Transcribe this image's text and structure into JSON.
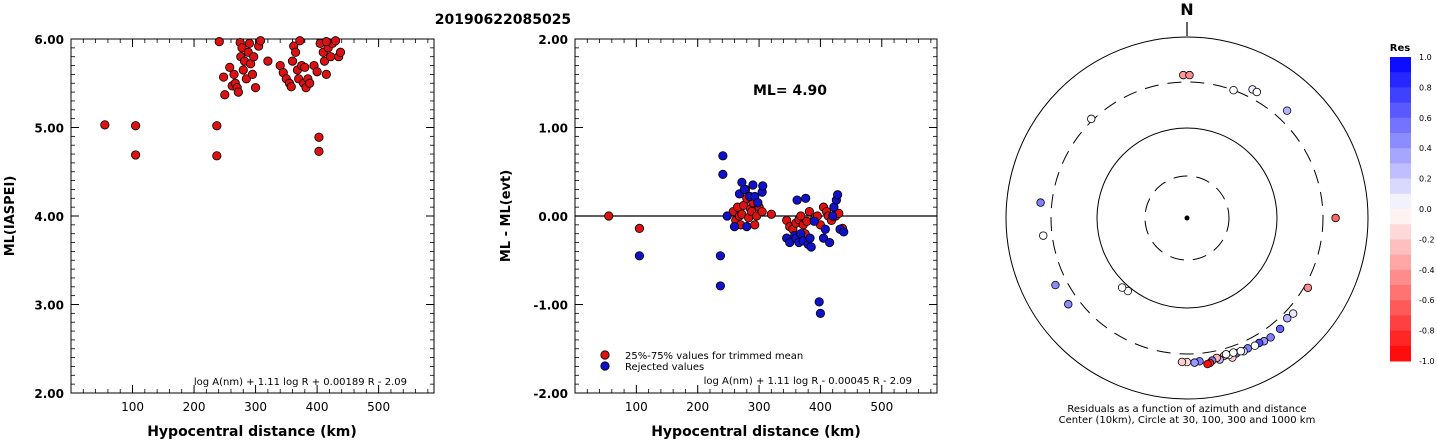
{
  "chart_data": [
    {
      "type": "scatter",
      "title": "20190622085025",
      "xlabel": "Hypocentral distance (km)",
      "ylabel": "ML(IASPEI)",
      "xlim": [
        0,
        590
      ],
      "ylim": [
        2.0,
        6.0
      ],
      "x_ticks": [
        "100",
        "200",
        "300",
        "400",
        "500"
      ],
      "x_tick_values": [
        100,
        200,
        300,
        400,
        500
      ],
      "y_ticks": [
        "2.00",
        "3.00",
        "4.00",
        "5.00",
        "6.00"
      ],
      "y_tick_values": [
        2,
        3,
        4,
        5,
        6
      ],
      "formula": "log A(nm) + 1.11 log R + 0.00189 R - 2.09",
      "point_color": "#dd1111",
      "series": [
        {
          "points": [
            [
              55,
              5.03
            ],
            [
              105,
              5.02
            ],
            [
              105,
              4.69
            ],
            [
              237,
              5.02
            ],
            [
              237,
              4.68
            ],
            [
              241,
              5.97
            ],
            [
              248,
              5.57
            ],
            [
              250,
              5.37
            ],
            [
              258,
              5.68
            ],
            [
              262,
              5.47
            ],
            [
              265,
              5.6
            ],
            [
              267,
              5.5
            ],
            [
              270,
              5.45
            ],
            [
              272,
              5.4
            ],
            [
              275,
              5.96
            ],
            [
              276,
              5.8
            ],
            [
              278,
              5.9
            ],
            [
              280,
              5.65
            ],
            [
              282,
              5.75
            ],
            [
              285,
              5.55
            ],
            [
              288,
              5.85
            ],
            [
              290,
              5.95
            ],
            [
              292,
              5.72
            ],
            [
              295,
              5.6
            ],
            [
              297,
              5.8
            ],
            [
              300,
              5.45
            ],
            [
              305,
              5.92
            ],
            [
              308,
              5.98
            ],
            [
              320,
              5.75
            ],
            [
              340,
              5.7
            ],
            [
              345,
              5.62
            ],
            [
              350,
              5.55
            ],
            [
              355,
              5.5
            ],
            [
              358,
              5.46
            ],
            [
              360,
              5.75
            ],
            [
              362,
              5.92
            ],
            [
              365,
              5.85
            ],
            [
              368,
              5.65
            ],
            [
              370,
              5.55
            ],
            [
              372,
              5.98
            ],
            [
              375,
              5.7
            ],
            [
              378,
              5.5
            ],
            [
              380,
              5.68
            ],
            [
              382,
              5.45
            ],
            [
              385,
              5.55
            ],
            [
              388,
              5.5
            ],
            [
              395,
              5.7
            ],
            [
              400,
              5.63
            ],
            [
              403,
              4.89
            ],
            [
              403,
              4.73
            ],
            [
              405,
              5.95
            ],
            [
              410,
              5.85
            ],
            [
              412,
              5.75
            ],
            [
              415,
              5.6
            ],
            [
              418,
              5.9
            ],
            [
              422,
              5.8
            ],
            [
              425,
              5.95
            ],
            [
              430,
              5.98
            ],
            [
              435,
              5.8
            ],
            [
              438,
              5.85
            ],
            [
              415,
              5.97
            ]
          ]
        }
      ]
    },
    {
      "type": "scatter",
      "xlabel": "Hypocentral distance (km)",
      "ylabel": "ML - ML(evt)",
      "xlim": [
        0,
        590
      ],
      "ylim": [
        -2.0,
        2.0
      ],
      "x_ticks": [
        "100",
        "200",
        "300",
        "400",
        "500"
      ],
      "x_tick_values": [
        100,
        200,
        300,
        400,
        500
      ],
      "y_ticks": [
        "-2.00",
        "-1.00",
        "0.00",
        "1.00",
        "2.00"
      ],
      "y_tick_values": [
        -2,
        -1,
        0,
        1,
        2
      ],
      "annotation": "ML= 4.90",
      "formula": "log A(nm) + 1.11 log R - 0.00045 R - 2.09",
      "legend_position": "bottom-left",
      "series": [
        {
          "name": "25%-75% values for trimmed mean",
          "color": "#dd1111",
          "points": [
            [
              55,
              0.0
            ],
            [
              105,
              -0.14
            ],
            [
              258,
              0.05
            ],
            [
              262,
              -0.05
            ],
            [
              265,
              0.1
            ],
            [
              268,
              0.0
            ],
            [
              270,
              -0.1
            ],
            [
              272,
              0.02
            ],
            [
              275,
              0.12
            ],
            [
              278,
              0.3
            ],
            [
              280,
              0.2
            ],
            [
              283,
              -0.02
            ],
            [
              286,
              0.08
            ],
            [
              288,
              0.05
            ],
            [
              290,
              0.15
            ],
            [
              293,
              -0.1
            ],
            [
              296,
              0.0
            ],
            [
              300,
              0.1
            ],
            [
              305,
              0.05
            ],
            [
              320,
              0.02
            ],
            [
              345,
              -0.05
            ],
            [
              350,
              -0.12
            ],
            [
              355,
              -0.15
            ],
            [
              360,
              -0.08
            ],
            [
              365,
              -0.04
            ],
            [
              368,
              0.0
            ],
            [
              372,
              -0.1
            ],
            [
              375,
              -0.2
            ],
            [
              378,
              -0.06
            ],
            [
              382,
              0.05
            ],
            [
              390,
              -0.04
            ],
            [
              395,
              0.0
            ],
            [
              400,
              -0.1
            ],
            [
              405,
              0.1
            ],
            [
              410,
              0.05
            ],
            [
              413,
              0.0
            ],
            [
              418,
              -0.05
            ],
            [
              425,
              0.0
            ],
            [
              430,
              0.03
            ],
            [
              436,
              -0.14
            ]
          ]
        },
        {
          "name": "Rejected values",
          "color": "#1111cc",
          "points": [
            [
              105,
              -0.45
            ],
            [
              237,
              -0.45
            ],
            [
              237,
              -0.79
            ],
            [
              241,
              0.68
            ],
            [
              241,
              0.47
            ],
            [
              248,
              0.0
            ],
            [
              260,
              -0.12
            ],
            [
              268,
              0.25
            ],
            [
              272,
              0.38
            ],
            [
              276,
              0.3
            ],
            [
              280,
              -0.12
            ],
            [
              285,
              0.22
            ],
            [
              290,
              0.35
            ],
            [
              293,
              0.22
            ],
            [
              298,
              0.15
            ],
            [
              305,
              0.27
            ],
            [
              306,
              0.34
            ],
            [
              345,
              -0.25
            ],
            [
              350,
              -0.3
            ],
            [
              358,
              -0.22
            ],
            [
              360,
              -0.25
            ],
            [
              362,
              0.18
            ],
            [
              365,
              -0.3
            ],
            [
              368,
              -0.2
            ],
            [
              372,
              -0.28
            ],
            [
              376,
              0.2
            ],
            [
              380,
              -0.32
            ],
            [
              383,
              -0.25
            ],
            [
              385,
              -0.35
            ],
            [
              390,
              -0.06
            ],
            [
              398,
              -0.97
            ],
            [
              400,
              -1.1
            ],
            [
              405,
              -0.25
            ],
            [
              408,
              -0.15
            ],
            [
              415,
              -0.3
            ],
            [
              420,
              0.0
            ],
            [
              422,
              0.1
            ],
            [
              426,
              0.18
            ],
            [
              428,
              0.24
            ],
            [
              432,
              -0.15
            ],
            [
              438,
              -0.18
            ]
          ]
        }
      ]
    },
    {
      "type": "scatter",
      "north_label": "N",
      "caption_line1": "Residuals as a function of azimuth and distance",
      "caption_line2": "Center (10km), Circle at 30, 100, 300 and 1000 km",
      "colorbar_title": "Res",
      "colorbar_labels": [
        "1.0",
        "0.8",
        "0.6",
        "0.4",
        "0.2",
        "0.0",
        "-0.2",
        "-0.4",
        "-0.6",
        "-0.8",
        "-1.0"
      ],
      "colorbar_values": [
        1.0,
        0.8,
        0.6,
        0.4,
        0.2,
        0.0,
        -0.2,
        -0.4,
        -0.6,
        -0.8,
        -1.0
      ],
      "stations": [
        {
          "az": -1.5,
          "dist": 361,
          "res": -0.4
        },
        {
          "az": 1.0,
          "dist": 361,
          "res": -0.45
        },
        {
          "az": 20,
          "dist": 300,
          "res": 0.0
        },
        {
          "az": 27,
          "dist": 375,
          "res": 0.05
        },
        {
          "az": 29,
          "dist": 372,
          "res": 0.0
        },
        {
          "az": 43,
          "dist": 400,
          "res": 0.3
        },
        {
          "az": 90,
          "dist": 420,
          "res": -0.6
        },
        {
          "az": 120,
          "dist": 330,
          "res": -0.45
        },
        {
          "az": 132,
          "dist": 360,
          "res": 0.1
        },
        {
          "az": 135,
          "dist": 350,
          "res": 0.3
        },
        {
          "az": 140,
          "dist": 380,
          "res": 0.6
        },
        {
          "az": 145,
          "dist": 390,
          "res": 0.5
        },
        {
          "az": 148,
          "dist": 385,
          "res": 0.4
        },
        {
          "az": 150,
          "dist": 375,
          "res": 0.7
        },
        {
          "az": 152,
          "dist": 378,
          "res": 0.0
        },
        {
          "az": 155,
          "dist": 370,
          "res": 0.5
        },
        {
          "az": 157,
          "dist": 380,
          "res": 0.2
        },
        {
          "az": 160,
          "dist": 372,
          "res": 0.6
        },
        {
          "az": 162,
          "dist": 400,
          "res": -0.2
        },
        {
          "az": 163,
          "dist": 365,
          "res": 0.0
        },
        {
          "az": 165,
          "dist": 360,
          "res": -0.3
        },
        {
          "az": 167,
          "dist": 385,
          "res": 0.3
        },
        {
          "az": 168,
          "dist": 362,
          "res": -0.3
        },
        {
          "az": 170,
          "dist": 380,
          "res": 0.5
        },
        {
          "az": 171,
          "dist": 400,
          "res": -0.9
        },
        {
          "az": 172,
          "dist": 408,
          "res": -0.95
        },
        {
          "az": 175,
          "dist": 370,
          "res": 0.5
        },
        {
          "az": 177,
          "dist": 380,
          "res": 0.4
        },
        {
          "az": 180,
          "dist": 372,
          "res": -0.15
        },
        {
          "az": 182,
          "dist": 372,
          "res": -0.2
        },
        {
          "az": 158,
          "dist": 368,
          "res": 0.0
        },
        {
          "az": 161,
          "dist": 355,
          "res": 0.0
        },
        {
          "az": 164,
          "dist": 350,
          "res": 0.0
        },
        {
          "az": 219,
          "dist": 110,
          "res": 0.0
        },
        {
          "az": 223,
          "dist": 113,
          "res": 0.0
        },
        {
          "az": 234,
          "dist": 400,
          "res": 0.45
        },
        {
          "az": 243,
          "dist": 410,
          "res": 0.45
        },
        {
          "az": 263,
          "dist": 380,
          "res": 0.0
        },
        {
          "az": 276,
          "dist": 405,
          "res": 0.5
        },
        {
          "az": 316,
          "dist": 315,
          "res": 0.0
        }
      ]
    }
  ]
}
